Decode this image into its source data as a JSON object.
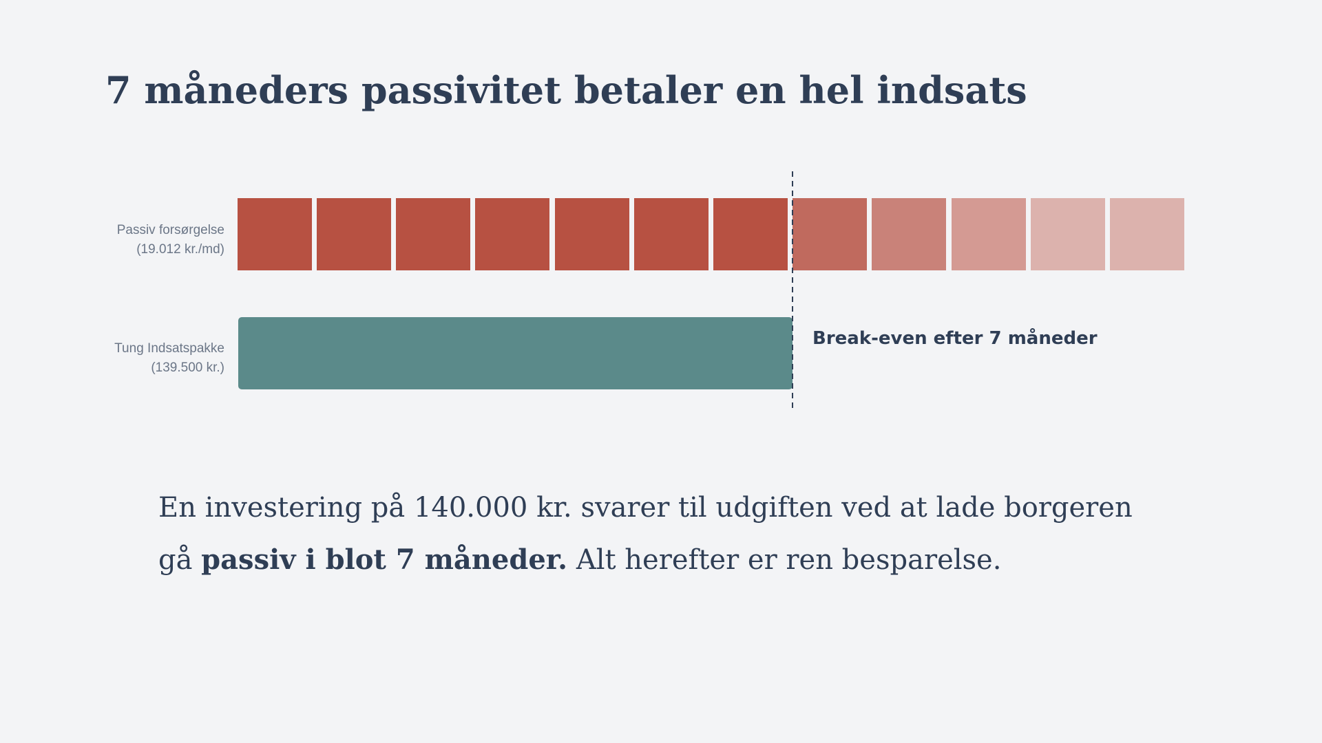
{
  "title": "7 måneders passivitet betaler en hel indsats",
  "rows": [
    {
      "label": [
        "Passiv forsørgelse",
        "(19.012 kr./md)"
      ]
    },
    {
      "label": [
        "Tung Indsatspakke",
        "(139.500 kr.)"
      ]
    }
  ],
  "annotation": "Break-even efter 7 måneder",
  "paragraph": {
    "line1": "En investering på 140.000 kr. svarer til udgiften ved at lade borgeren",
    "line2_start": "gå ",
    "line2_bold": "passiv i blot 7 måneder.",
    "line2_end": " Alt herefter er ren besparelse."
  }
}
